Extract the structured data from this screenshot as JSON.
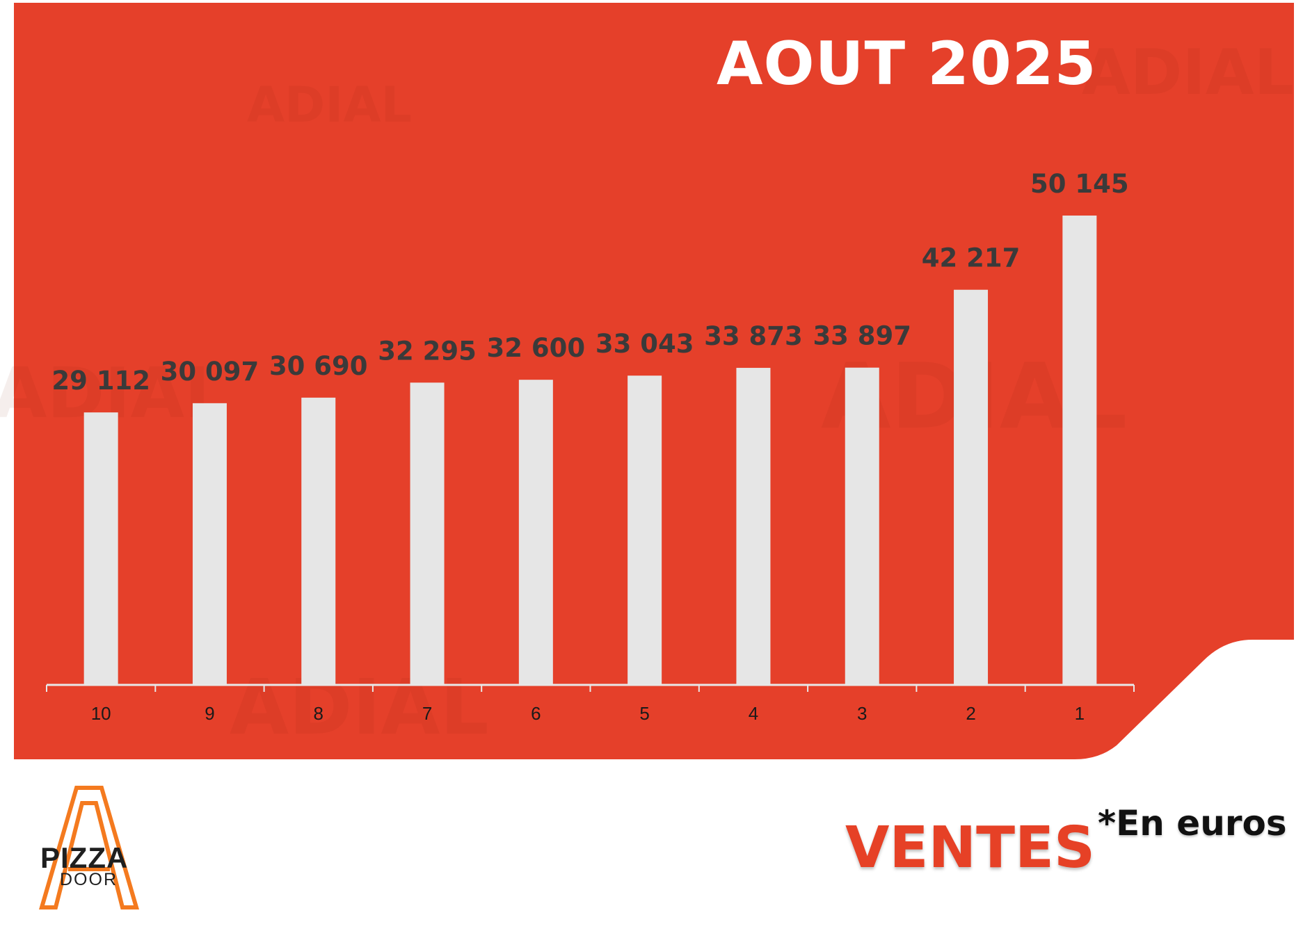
{
  "title": "AOUT 2025",
  "footer": {
    "label": "VENTES",
    "unit_note": "*En euros",
    "logo_text_1": "PIZZA",
    "logo_text_2": "DOOR",
    "watermark_text": "ADIAL"
  },
  "colors": {
    "background": "#e5402a",
    "bar": "#e6e6e6",
    "value_label": "#3a3a3a",
    "axis": "#e8e8e8",
    "accent": "#e64126"
  },
  "chart_data": {
    "type": "bar",
    "title": "AOUT 2025",
    "categories": [
      "10",
      "9",
      "8",
      "7",
      "6",
      "5",
      "4",
      "3",
      "2",
      "1"
    ],
    "values": [
      29112,
      30097,
      30690,
      32295,
      32600,
      33043,
      33873,
      33897,
      42217,
      50145
    ],
    "value_labels": [
      "29 112",
      "30 097",
      "30 690",
      "32 295",
      "32 600",
      "33 043",
      "33 873",
      "33 897",
      "42 217",
      "50 145"
    ],
    "xlabel": "",
    "ylabel": "",
    "ylim": [
      0,
      50145
    ],
    "grid": false,
    "legend": "none"
  }
}
